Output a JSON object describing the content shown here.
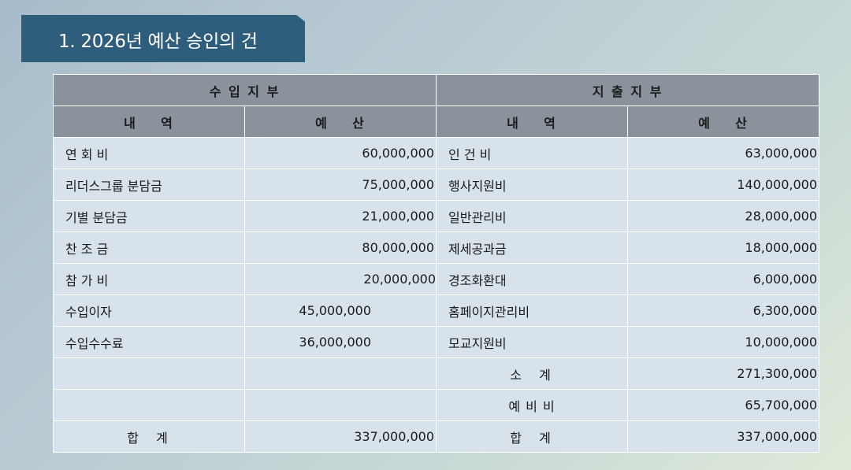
{
  "title": "1. 2026년 예산 승인의 건",
  "table": {
    "income_header": "수 입 지 부",
    "expense_header": "지 출 지 부",
    "col_item": "내    역",
    "col_budget": "예    산",
    "rows": [
      {
        "income_item": "연 회 비",
        "income_amount": "60,000,000",
        "expense_item": "인 건 비",
        "expense_amount": "63,000,000"
      },
      {
        "income_item": "리더스그룹 분담금",
        "income_amount": "75,000,000",
        "expense_item": "행사지원비",
        "expense_amount": "140,000,000"
      },
      {
        "income_item": "기별 분담금",
        "income_amount": "21,000,000",
        "expense_item": "일반관리비",
        "expense_amount": "28,000,000"
      },
      {
        "income_item": "찬 조 금",
        "income_amount": "80,000,000",
        "expense_item": "제세공과금",
        "expense_amount": "18,000,000"
      },
      {
        "income_item": "참 가 비",
        "income_amount": "20,000,000",
        "expense_item": "경조화환대",
        "expense_amount": "6,000,000"
      },
      {
        "income_item": "수입이자",
        "income_amount": "45,000,000",
        "expense_item": "홈페이지관리비",
        "expense_amount": "6,300,000"
      },
      {
        "income_item": "수입수수료",
        "income_amount": "36,000,000",
        "expense_item": "모교지원비",
        "expense_amount": "10,000,000"
      }
    ],
    "subtotal_label": "소  계",
    "subtotal_amount": "271,300,000",
    "reserve_label": "예 비 비",
    "reserve_amount": "65,700,000",
    "income_total_label": "합  계",
    "income_total_amount": "337,000,000",
    "expense_total_label": "합  계",
    "expense_total_amount": "337,000,000"
  }
}
